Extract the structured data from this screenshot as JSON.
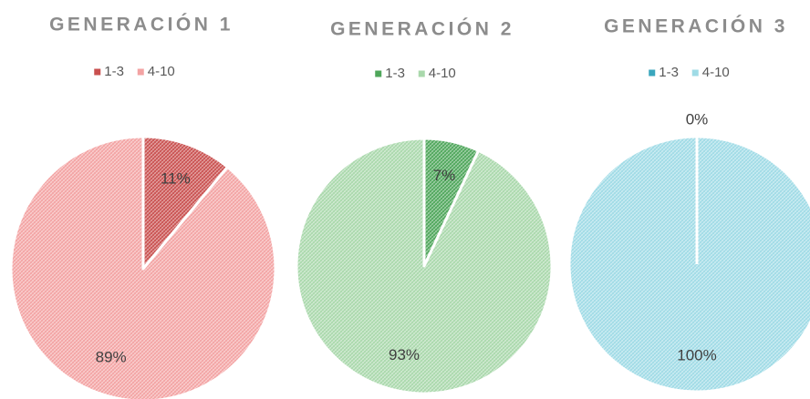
{
  "chart_data": [
    {
      "type": "pie",
      "title": "GENERACIÓN 1",
      "categories": [
        "1-3",
        "4-10"
      ],
      "values": [
        11,
        89
      ],
      "value_labels": [
        "11%",
        "89%"
      ],
      "colors": [
        "#c9504f",
        "#f3a3a3"
      ]
    },
    {
      "type": "pie",
      "title": "GENERACIÓN 2",
      "categories": [
        "1-3",
        "4-10"
      ],
      "values": [
        7,
        93
      ],
      "value_labels": [
        "7%",
        "93%"
      ],
      "colors": [
        "#4ea65a",
        "#a9d8ab"
      ]
    },
    {
      "type": "pie",
      "title": "GENERACIÓN 3",
      "categories": [
        "1-3",
        "4-10"
      ],
      "values": [
        0,
        100
      ],
      "value_labels": [
        "0%",
        "100%"
      ],
      "colors": [
        "#3aa6bd",
        "#9fdbe6"
      ]
    }
  ]
}
